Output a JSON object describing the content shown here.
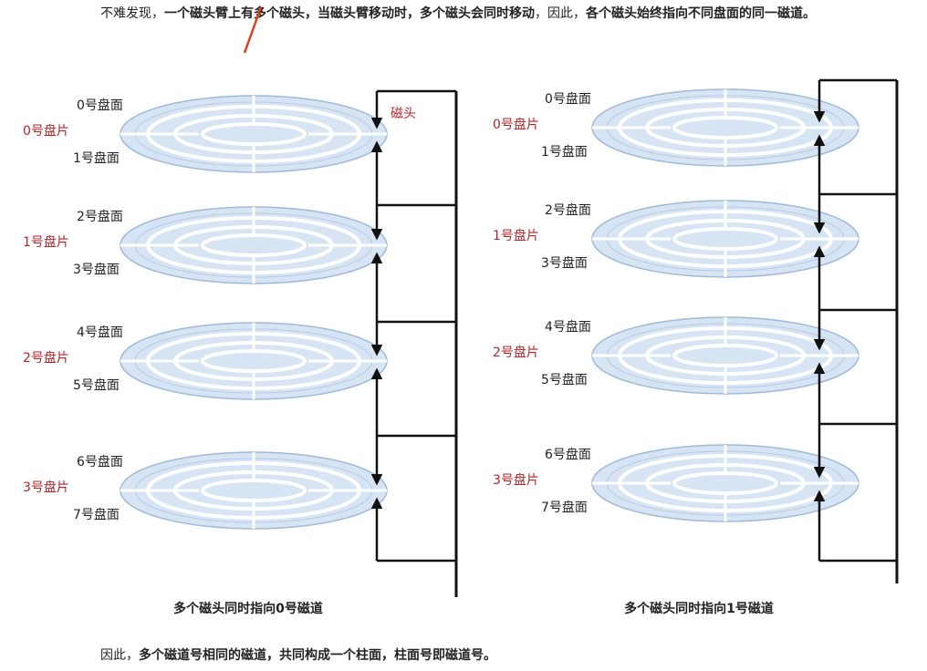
{
  "paragraph": {
    "segments": [
      "不难发现，",
      "一个磁头臂上有多个磁头，当磁头臂移动时，多个磁头会同时移动",
      "，因此，",
      "各个磁头始终指向不同盘面的同一磁道。"
    ]
  },
  "diagrams": [
    {
      "platters": [
        {
          "label": "0号盘片",
          "top": "0号盘面",
          "bottom": "1号盘面"
        },
        {
          "label": "1号盘片",
          "top": "2号盘面",
          "bottom": "3号盘面"
        },
        {
          "label": "2号盘片",
          "top": "4号盘面",
          "bottom": "5号盘面"
        },
        {
          "label": "3号盘片",
          "top": "6号盘面",
          "bottom": "7号盘面"
        }
      ],
      "head_label": "磁头",
      "caption": "多个磁头同时指向0号磁道"
    },
    {
      "platters": [
        {
          "label": "0号盘片",
          "top": "0号盘面",
          "bottom": "1号盘面"
        },
        {
          "label": "1号盘片",
          "top": "2号盘面",
          "bottom": "3号盘面"
        },
        {
          "label": "2号盘片",
          "top": "4号盘面",
          "bottom": "5号盘面"
        },
        {
          "label": "3号盘片",
          "top": "6号盘面",
          "bottom": "7号盘面"
        }
      ],
      "caption": "多个磁头同时指向1号磁道"
    }
  ],
  "conclusion": {
    "segments": [
      "因此，",
      "多个磁道号相同的磁道，共同构成一个柱面，柱面号即磁道号。"
    ]
  }
}
